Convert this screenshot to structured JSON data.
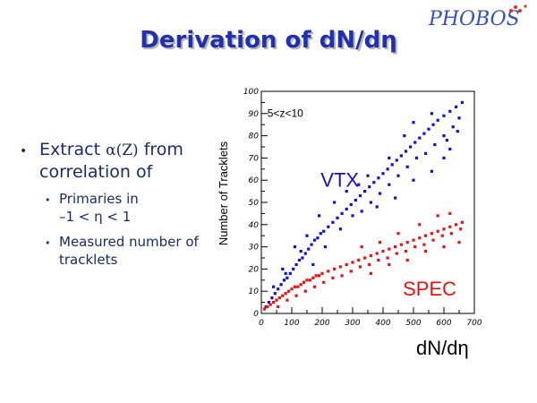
{
  "logo": {
    "text": "PHOBOS"
  },
  "title": "Derivation of dN/dη",
  "bullets": {
    "main_pre": "Extract ",
    "main_alpha": "α(Z)",
    "main_post": " from correlation of",
    "sub1_line1": "Primaries in",
    "sub1_line2": "–1 < η < 1",
    "sub2": "Measured number of tracklets"
  },
  "chart_data": {
    "type": "scatter",
    "ylabel": "Number of Tracklets",
    "xlabel": "dN/dη",
    "annotation": "5<z<10",
    "xlim": [
      0,
      700
    ],
    "ylim": [
      0,
      100
    ],
    "xticks": [
      "0",
      "100",
      "200",
      "300",
      "400",
      "500",
      "600",
      "700"
    ],
    "yticks": [
      "0",
      "10",
      "20",
      "30",
      "40",
      "50",
      "60",
      "70",
      "80",
      "90",
      "100"
    ],
    "series": [
      {
        "name": "VTX",
        "color": "#1010d8",
        "points": [
          [
            15,
            3
          ],
          [
            25,
            5
          ],
          [
            35,
            7
          ],
          [
            45,
            9
          ],
          [
            55,
            11
          ],
          [
            65,
            13
          ],
          [
            75,
            15
          ],
          [
            85,
            16
          ],
          [
            95,
            18
          ],
          [
            105,
            20
          ],
          [
            115,
            22
          ],
          [
            125,
            24
          ],
          [
            135,
            25
          ],
          [
            145,
            27
          ],
          [
            155,
            29
          ],
          [
            165,
            31
          ],
          [
            175,
            33
          ],
          [
            185,
            34
          ],
          [
            195,
            36
          ],
          [
            205,
            37
          ],
          [
            220,
            39
          ],
          [
            235,
            41
          ],
          [
            250,
            43
          ],
          [
            265,
            45
          ],
          [
            280,
            47
          ],
          [
            295,
            49
          ],
          [
            310,
            51
          ],
          [
            325,
            53
          ],
          [
            340,
            55
          ],
          [
            355,
            57
          ],
          [
            370,
            59
          ],
          [
            385,
            61
          ],
          [
            400,
            63
          ],
          [
            415,
            65
          ],
          [
            430,
            67
          ],
          [
            445,
            69
          ],
          [
            460,
            71
          ],
          [
            475,
            73
          ],
          [
            490,
            75
          ],
          [
            505,
            77
          ],
          [
            520,
            79
          ],
          [
            535,
            81
          ],
          [
            550,
            83
          ],
          [
            565,
            85
          ],
          [
            580,
            87
          ],
          [
            600,
            89
          ],
          [
            620,
            91
          ],
          [
            640,
            93
          ],
          [
            660,
            95
          ],
          [
            40,
            12
          ],
          [
            80,
            18
          ],
          [
            130,
            28
          ],
          [
            170,
            22
          ],
          [
            210,
            30
          ],
          [
            260,
            38
          ],
          [
            300,
            44
          ],
          [
            330,
            46
          ],
          [
            360,
            50
          ],
          [
            390,
            54
          ],
          [
            420,
            58
          ],
          [
            450,
            62
          ],
          [
            480,
            66
          ],
          [
            510,
            70
          ],
          [
            540,
            72
          ],
          [
            570,
            76
          ],
          [
            600,
            80
          ],
          [
            630,
            84
          ],
          [
            650,
            88
          ],
          [
            350,
            62
          ],
          [
            420,
            70
          ],
          [
            470,
            80
          ],
          [
            500,
            86
          ],
          [
            560,
            90
          ],
          [
            600,
            70
          ],
          [
            620,
            74
          ],
          [
            280,
            55
          ],
          [
            320,
            58
          ],
          [
            240,
            50
          ],
          [
            190,
            44
          ],
          [
            150,
            35
          ],
          [
            110,
            30
          ],
          [
            70,
            20
          ],
          [
            380,
            48
          ],
          [
            440,
            52
          ],
          [
            500,
            60
          ],
          [
            560,
            64
          ],
          [
            610,
            78
          ],
          [
            645,
            82
          ]
        ]
      },
      {
        "name": "SPEC",
        "color": "#ee1010",
        "points": [
          [
            10,
            2
          ],
          [
            20,
            3
          ],
          [
            30,
            4
          ],
          [
            40,
            5
          ],
          [
            50,
            6
          ],
          [
            60,
            7
          ],
          [
            70,
            8
          ],
          [
            80,
            9
          ],
          [
            90,
            10
          ],
          [
            100,
            11
          ],
          [
            110,
            12
          ],
          [
            120,
            12
          ],
          [
            130,
            13
          ],
          [
            140,
            14
          ],
          [
            150,
            15
          ],
          [
            160,
            15
          ],
          [
            170,
            16
          ],
          [
            180,
            17
          ],
          [
            190,
            17
          ],
          [
            200,
            18
          ],
          [
            220,
            19
          ],
          [
            240,
            20
          ],
          [
            260,
            21
          ],
          [
            280,
            22
          ],
          [
            300,
            23
          ],
          [
            320,
            24
          ],
          [
            340,
            25
          ],
          [
            360,
            26
          ],
          [
            380,
            27
          ],
          [
            400,
            28
          ],
          [
            420,
            29
          ],
          [
            440,
            30
          ],
          [
            460,
            31
          ],
          [
            480,
            32
          ],
          [
            500,
            33
          ],
          [
            520,
            34
          ],
          [
            540,
            35
          ],
          [
            560,
            36
          ],
          [
            580,
            37
          ],
          [
            600,
            38
          ],
          [
            620,
            39
          ],
          [
            640,
            40
          ],
          [
            660,
            41
          ],
          [
            55,
            3
          ],
          [
            85,
            6
          ],
          [
            115,
            8
          ],
          [
            145,
            10
          ],
          [
            175,
            12
          ],
          [
            205,
            14
          ],
          [
            235,
            16
          ],
          [
            265,
            17
          ],
          [
            295,
            19
          ],
          [
            325,
            21
          ],
          [
            355,
            22
          ],
          [
            385,
            24
          ],
          [
            415,
            25
          ],
          [
            445,
            27
          ],
          [
            475,
            28
          ],
          [
            505,
            30
          ],
          [
            535,
            31
          ],
          [
            565,
            33
          ],
          [
            595,
            35
          ],
          [
            625,
            36
          ],
          [
            655,
            38
          ],
          [
            330,
            30
          ],
          [
            390,
            32
          ],
          [
            450,
            36
          ],
          [
            520,
            40
          ],
          [
            580,
            44
          ],
          [
            620,
            45
          ],
          [
            360,
            18
          ],
          [
            420,
            22
          ],
          [
            480,
            24
          ],
          [
            540,
            28
          ],
          [
            600,
            30
          ],
          [
            650,
            32
          ]
        ]
      }
    ],
    "series_label_colors": {
      "VTX": "#1010d8",
      "SPEC": "#ee1010"
    }
  }
}
